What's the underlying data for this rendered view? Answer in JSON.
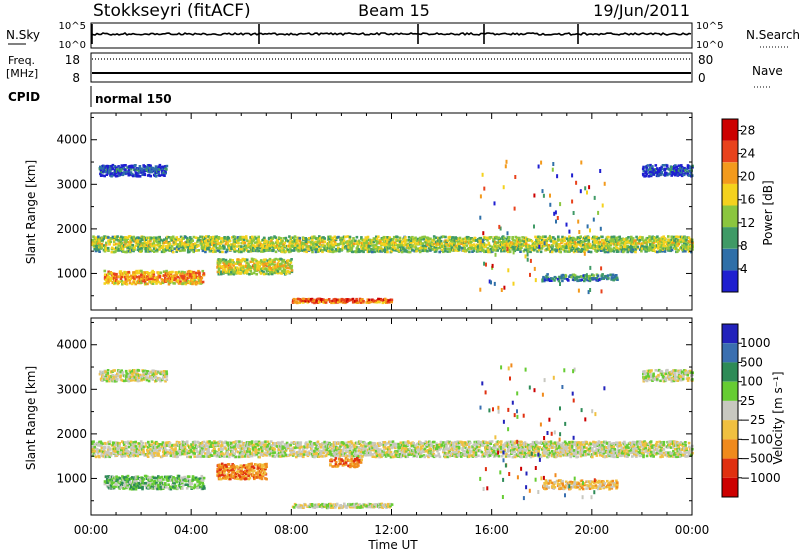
{
  "header": {
    "station": "Stokkseyri (fitACF)",
    "beam": "Beam 15",
    "date": "19/Jun/2011"
  },
  "strips": {
    "nsky_label": "N.Sky",
    "nsky_ticks": [
      "10^5",
      "10^0"
    ],
    "nsearch_label": "N.Search",
    "nsearch_ticks": [
      "10^5",
      "10^0"
    ],
    "freq_label_1": "Freq.",
    "freq_label_2": "[MHz]",
    "freq_ticks": [
      "18",
      "8"
    ],
    "nave_label": "Nave",
    "nave_ticks": [
      "80",
      "0"
    ],
    "cpid_label": "CPID",
    "cpid_value": "normal 150"
  },
  "chart_data": [
    {
      "type": "heatmap",
      "name": "power",
      "ylabel": "Slant Range [km]",
      "yticks": [
        1000,
        2000,
        3000,
        4000
      ],
      "ylim": [
        180,
        4600
      ],
      "xticks": [
        "00:00",
        "04:00",
        "08:00",
        "12:00",
        "16:00",
        "20:00",
        "00:00"
      ],
      "xlim_hours": [
        0,
        24
      ],
      "colorbar": {
        "label": "Power [dB]",
        "ticks": [
          4,
          8,
          12,
          16,
          20,
          24,
          28
        ],
        "range": [
          0,
          30
        ],
        "colors": [
          "#1f1fd0",
          "#2f6fa8",
          "#3f9a66",
          "#8bc63f",
          "#f4d21e",
          "#f39a1c",
          "#e8421c",
          "#cc0000"
        ]
      },
      "bands": [
        {
          "from_h": 0.0,
          "to_h": 24.0,
          "center_km": 1650,
          "width_km": 350,
          "level_db": 16
        },
        {
          "from_h": 0.5,
          "to_h": 4.5,
          "center_km": 900,
          "width_km": 300,
          "level_db": 22
        },
        {
          "from_h": 5.0,
          "to_h": 8.0,
          "center_km": 1150,
          "width_km": 350,
          "level_db": 18
        },
        {
          "from_h": 8.0,
          "to_h": 12.0,
          "center_km": 380,
          "width_km": 90,
          "level_db": 26
        },
        {
          "from_h": 18.0,
          "to_h": 21.0,
          "center_km": 900,
          "width_km": 150,
          "level_db": 10
        },
        {
          "from_h": 0.3,
          "to_h": 3.0,
          "center_km": 3300,
          "width_km": 250,
          "level_db": 6
        },
        {
          "from_h": 22.0,
          "to_h": 24.0,
          "center_km": 3300,
          "width_km": 250,
          "level_db": 6
        }
      ]
    },
    {
      "type": "heatmap",
      "name": "velocity",
      "ylabel": "Slant Range [km]",
      "yticks": [
        1000,
        2000,
        3000,
        4000
      ],
      "ylim": [
        180,
        4600
      ],
      "xticks": [
        "00:00",
        "04:00",
        "08:00",
        "12:00",
        "16:00",
        "20:00",
        "00:00"
      ],
      "xlabel": "Time UT",
      "xlim_hours": [
        0,
        24
      ],
      "colorbar": {
        "label": "Velocity [m s⁻¹]",
        "ticks": [
          "1000",
          "500",
          "100",
          "25",
          "−25",
          "−100",
          "−500",
          "−1000"
        ],
        "colors": [
          "#2222bb",
          "#3a6fb0",
          "#2e8b57",
          "#66cc33",
          "#c8c8c0",
          "#f0c040",
          "#f08a1c",
          "#e03010",
          "#cc0000"
        ]
      },
      "bands": [
        {
          "from_h": 0.0,
          "to_h": 24.0,
          "center_km": 1650,
          "width_km": 350,
          "level": 0
        },
        {
          "from_h": 0.5,
          "to_h": 4.5,
          "center_km": 900,
          "width_km": 300,
          "level": 1
        },
        {
          "from_h": 5.0,
          "to_h": 7.0,
          "center_km": 1150,
          "width_km": 350,
          "level": -2
        },
        {
          "from_h": 9.5,
          "to_h": 10.8,
          "center_km": 1350,
          "width_km": 200,
          "level": -2
        },
        {
          "from_h": 8.0,
          "to_h": 12.0,
          "center_km": 380,
          "width_km": 90,
          "level": 0
        },
        {
          "from_h": 18.0,
          "to_h": 21.0,
          "center_km": 850,
          "width_km": 200,
          "level": -1
        },
        {
          "from_h": 0.3,
          "to_h": 3.0,
          "center_km": 3300,
          "width_km": 250,
          "level": 0
        },
        {
          "from_h": 22.0,
          "to_h": 24.0,
          "center_km": 3300,
          "width_km": 250,
          "level": 0
        }
      ]
    }
  ]
}
